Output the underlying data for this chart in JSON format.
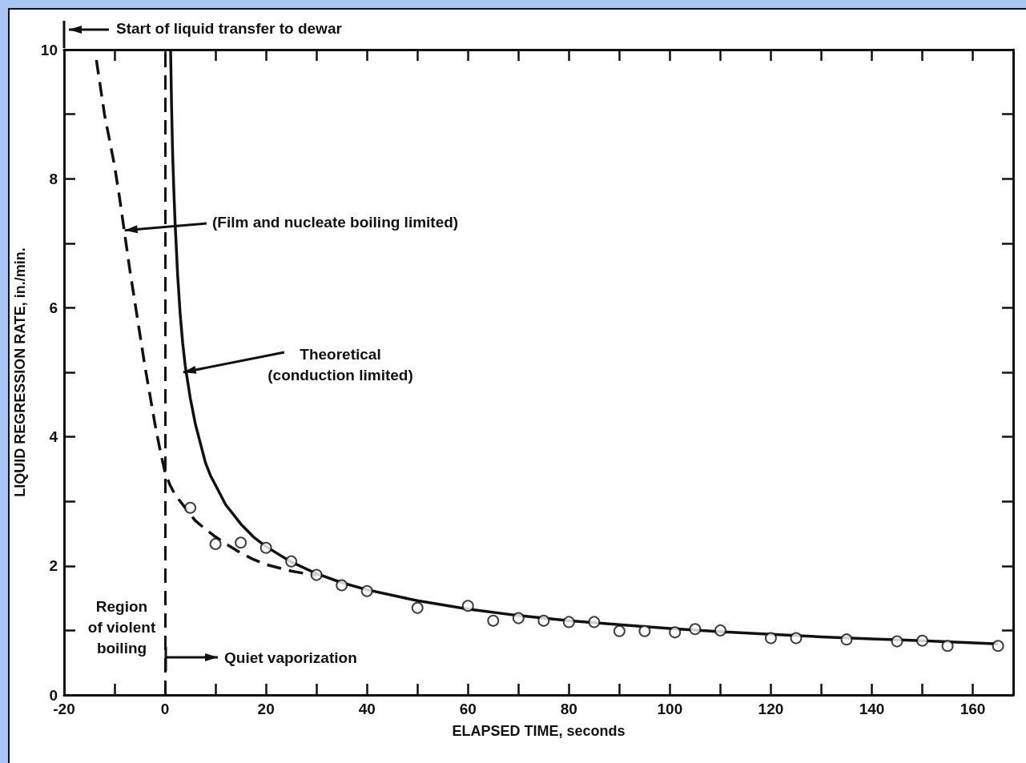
{
  "chart_data": {
    "type": "scatter",
    "xlabel": "ELAPSED TIME, seconds",
    "ylabel": "LIQUID REGRESSION RATE, in./min.",
    "annotations": [
      "Start of liquid transfer to dewar",
      {
        "text": "(Film and nucleate boiling limited)",
        "x": -8,
        "y": 7.2
      },
      {
        "text": "Theoretical\n(conduction limited)",
        "x": 3.6,
        "y": 5.0
      },
      "Region\nof violent\nboiling",
      "Quiet vaporization"
    ],
    "xlim": [
      -20,
      168
    ],
    "xticks": [
      -20,
      {
        "value": -10,
        "label": null
      },
      0,
      {
        "value": 10,
        "label": null
      },
      20,
      {
        "value": 30,
        "label": null
      },
      40,
      {
        "value": 50,
        "label": null
      },
      60,
      {
        "value": 70,
        "label": null
      },
      80,
      {
        "value": 90,
        "label": null
      },
      100,
      {
        "value": 110,
        "label": null
      },
      120,
      {
        "value": 130,
        "label": null
      },
      140,
      {
        "value": 150,
        "label": null
      },
      160
    ],
    "ylim": [
      0,
      10
    ],
    "yticks": [
      0,
      {
        "value": 1,
        "label": null
      },
      2,
      {
        "value": 3,
        "label": null
      },
      4,
      {
        "value": 5,
        "label": null
      },
      6,
      {
        "value": 7,
        "label": null
      },
      8,
      {
        "value": 9,
        "label": null
      },
      10
    ],
    "grid": false,
    "ref_lines": [
      {
        "axis": "x",
        "value": 0,
        "line_style": "dashed",
        "color": "#111111"
      }
    ],
    "series": [
      {
        "marker": "circle",
        "color": "#111111",
        "x": [
          5,
          10,
          15,
          20,
          25,
          30,
          35,
          40,
          50,
          60,
          65,
          70,
          75,
          80,
          85,
          90,
          95,
          101,
          105,
          110,
          120,
          125,
          135,
          145,
          150,
          155,
          165
        ],
        "values": [
          2.9,
          2.34,
          2.36,
          2.28,
          2.07,
          1.86,
          1.7,
          1.61,
          1.35,
          1.38,
          1.15,
          1.19,
          1.15,
          1.13,
          1.13,
          0.99,
          0.99,
          0.97,
          1.02,
          1.0,
          0.88,
          0.88,
          0.86,
          0.83,
          0.84,
          0.76,
          0.76
        ]
      },
      {
        "type": "line",
        "marker": "none",
        "line_style": "solid",
        "color": "#111111",
        "x": [
          1.1,
          1.3,
          1.5,
          1.75,
          2,
          2.5,
          3,
          3.5,
          4,
          5,
          6,
          7,
          8,
          9,
          10,
          12,
          15,
          17.5,
          20,
          25,
          30,
          35,
          40,
          50,
          60,
          70,
          80,
          90,
          100,
          110,
          120,
          130,
          140,
          150,
          165
        ],
        "values": [
          10,
          9.1,
          8.4,
          7.8,
          7.3,
          6.5,
          5.9,
          5.45,
          5.1,
          4.6,
          4.2,
          3.9,
          3.6,
          3.4,
          3.25,
          2.95,
          2.65,
          2.45,
          2.3,
          2.06,
          1.88,
          1.74,
          1.63,
          1.46,
          1.33,
          1.23,
          1.15,
          1.09,
          1.03,
          0.98,
          0.94,
          0.9,
          0.87,
          0.84,
          0.79
        ]
      },
      {
        "type": "line",
        "marker": "none",
        "line_style": "dashed",
        "color": "#111111",
        "x": [
          -13.6,
          -12,
          -10,
          -9,
          -8,
          -7,
          -6,
          -5,
          -4,
          -3,
          -2,
          -1,
          0,
          1,
          2,
          3,
          4.5,
          6,
          8,
          10,
          12.5,
          15,
          17.5,
          20,
          25,
          30
        ],
        "values": [
          9.84,
          9.0,
          8.2,
          7.7,
          7.15,
          6.6,
          6.1,
          5.6,
          5.1,
          4.65,
          4.2,
          3.8,
          3.45,
          3.25,
          3.1,
          3.0,
          2.85,
          2.7,
          2.57,
          2.45,
          2.32,
          2.2,
          2.1,
          2.02,
          1.92,
          1.85
        ]
      }
    ]
  }
}
